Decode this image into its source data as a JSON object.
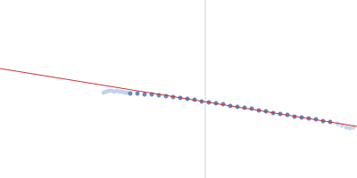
{
  "chart_data": {
    "type": "scatter",
    "xlim": [
      0,
      400
    ],
    "ylim": [
      0,
      200
    ],
    "tick_labels": false,
    "grid": false,
    "series": [
      {
        "type": "line",
        "color": "#c9d3e6",
        "x": [
          230,
          230
        ],
        "values": [
          0,
          200
        ]
      },
      {
        "type": "scatter",
        "color": "#b9cce8",
        "x": [
          116,
          119,
          122,
          125,
          128,
          131,
          134,
          137,
          140,
          143,
          378,
          383,
          388,
          392,
          396
        ],
        "values": [
          96,
          97,
          98,
          98,
          97,
          98,
          97,
          97,
          96,
          96,
          61,
          59,
          57,
          56,
          57
        ]
      },
      {
        "type": "scatter",
        "color": "#3a6db5",
        "x": [
          146,
          154,
          162,
          170,
          178,
          186,
          194,
          202,
          210,
          218,
          226,
          234,
          242,
          250,
          258,
          266,
          274,
          282,
          290,
          298,
          306,
          314,
          322,
          330,
          338,
          346,
          354,
          362,
          370
        ],
        "values": [
          95,
          95,
          94,
          94,
          93,
          92,
          91,
          90,
          89,
          88,
          86,
          85,
          84,
          83,
          81,
          80,
          79,
          78,
          76,
          75,
          73,
          72,
          71,
          69,
          68,
          67,
          66,
          64,
          63
        ]
      },
      {
        "type": "line",
        "color": "#d03030",
        "x": [
          0,
          400
        ],
        "values": [
          123,
          58
        ]
      }
    ]
  }
}
